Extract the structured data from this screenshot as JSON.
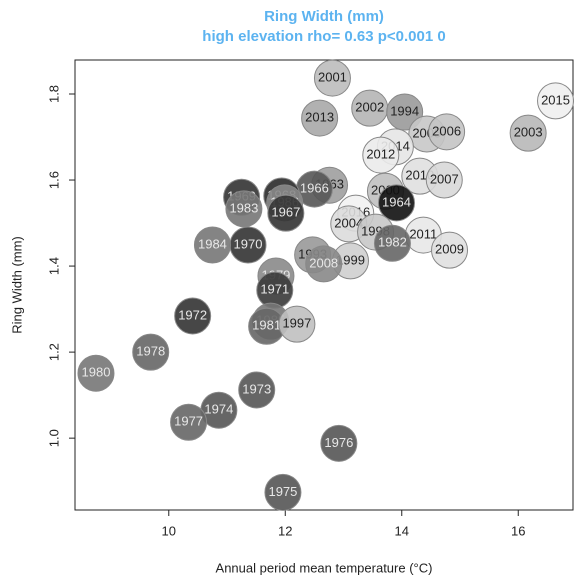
{
  "chart_data": {
    "type": "scatter",
    "title": "Ring Width (mm)",
    "subtitle": "high elevation rho= 0.63 p<0.001 0",
    "x_label": "Annual period mean temperature (°C)",
    "y_label": "Ring Width (mm)",
    "xlim": [
      8.39,
      16.94
    ],
    "ylim": [
      0.833,
      1.879
    ],
    "xticks": [
      10,
      12,
      14,
      16
    ],
    "yticks": [
      {
        "value": 1,
        "label": "1.0"
      },
      1.2,
      1.4,
      1.6,
      1.8
    ],
    "series": [
      {
        "labels": [
          "2001",
          "2015",
          "2013",
          "2002",
          "1994",
          "2005",
          "2006",
          "2003",
          "2014",
          "2012",
          "2010",
          "2007",
          "1963",
          "1966",
          "2000",
          "1964",
          "1969",
          "1968",
          "1986",
          "1967",
          "1983",
          "2016",
          "2004",
          "1998",
          "2011",
          "1982",
          "1970",
          "1984",
          "1999",
          "1993",
          "2008",
          "1979",
          "1971",
          "2009",
          "1972",
          "1985",
          "1981",
          "1997",
          "1978",
          "1980",
          "1973",
          "1974",
          "1977",
          "1976",
          "1975"
        ],
        "x": [
          12.81,
          16.64,
          12.59,
          13.45,
          14.05,
          14.43,
          14.77,
          16.17,
          13.89,
          13.64,
          14.31,
          14.73,
          12.76,
          12.5,
          13.72,
          13.91,
          11.25,
          11.94,
          11.99,
          12.01,
          11.29,
          13.21,
          13.09,
          13.55,
          14.37,
          13.84,
          11.36,
          10.75,
          13.12,
          12.47,
          12.66,
          11.84,
          11.82,
          14.82,
          10.41,
          11.75,
          11.68,
          12.2,
          9.69,
          8.75,
          11.51,
          10.86,
          10.34,
          12.92,
          11.96
        ],
        "values": [
          1.837,
          1.784,
          1.744,
          1.767,
          1.758,
          1.707,
          1.712,
          1.709,
          1.677,
          1.658,
          1.609,
          1.6,
          1.588,
          1.579,
          1.574,
          1.547,
          1.56,
          1.563,
          1.547,
          1.523,
          1.533,
          1.523,
          1.498,
          1.479,
          1.472,
          1.453,
          1.449,
          1.449,
          1.412,
          1.426,
          1.405,
          1.377,
          1.344,
          1.437,
          1.284,
          1.272,
          1.26,
          1.265,
          1.2,
          1.151,
          1.112,
          1.065,
          1.037,
          0.988,
          0.874
        ],
        "colors": [
          "#bdbdbd",
          "#efefef",
          "#a8a8a8",
          "#b5b5b5",
          "#9a9a9a",
          "#c8c8c8",
          "#c4c4c4",
          "#b8b8b8",
          "#e6e6e6",
          "#ebebeb",
          "#e0e0e0",
          "#d8d8d8",
          "#9e9e9e",
          "#555555",
          "#c0c0c0",
          "#111111",
          "#333333",
          "#2a2a2a",
          "#888888",
          "#333333",
          "#777777",
          "#f2f2f2",
          "#dcdcdc",
          "#c8c8c8",
          "#e8e8e8",
          "#666666",
          "#333333",
          "#777777",
          "#cfcfcf",
          "#999999",
          "#888888",
          "#8a8a8a",
          "#3a3a3a",
          "#e0e0e0",
          "#333333",
          "#777777",
          "#666666",
          "#c0c0c0",
          "#666666",
          "#777777",
          "#555555",
          "#555555",
          "#666666",
          "#555555",
          "#555555"
        ]
      }
    ]
  }
}
